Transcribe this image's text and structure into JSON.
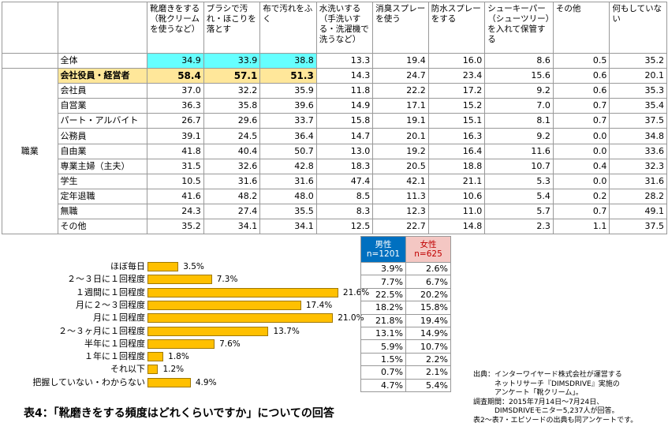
{
  "main_table": {
    "headers": [
      "靴磨きをする（靴クリームを使うなど）",
      "ブラシで汚れ・ほこりを落とす",
      "布で汚れをふく",
      "水洗いする（手洗いする・洗濯機で洗うなど）",
      "消臭スプレーを使う",
      "防水スプレーをする",
      "シューキーパー（シューツリー）を入れて保管する",
      "その他",
      "何もしていない"
    ],
    "total_row": {
      "label": "全体",
      "values": [
        "34.9",
        "33.9",
        "38.8",
        "13.3",
        "19.4",
        "16.0",
        "8.6",
        "0.5",
        "35.2"
      ]
    },
    "group_label": "職業",
    "rows": [
      {
        "label": "会社役員・経営者",
        "values": [
          "58.4",
          "57.1",
          "51.3",
          "14.3",
          "24.7",
          "23.4",
          "15.6",
          "0.6",
          "20.1"
        ]
      },
      {
        "label": "会社員",
        "values": [
          "37.0",
          "32.2",
          "35.9",
          "11.8",
          "22.2",
          "17.2",
          "9.2",
          "0.6",
          "35.3"
        ]
      },
      {
        "label": "自営業",
        "values": [
          "36.3",
          "35.8",
          "39.6",
          "14.9",
          "17.1",
          "15.2",
          "7.0",
          "0.7",
          "35.4"
        ]
      },
      {
        "label": "パート・アルバイト",
        "values": [
          "26.7",
          "29.6",
          "33.7",
          "15.8",
          "19.1",
          "15.1",
          "8.1",
          "0.7",
          "37.5"
        ]
      },
      {
        "label": "公務員",
        "values": [
          "39.1",
          "24.5",
          "36.4",
          "14.7",
          "20.1",
          "16.3",
          "9.2",
          "0.0",
          "34.8"
        ]
      },
      {
        "label": "自由業",
        "values": [
          "41.8",
          "40.4",
          "50.7",
          "13.0",
          "19.2",
          "16.4",
          "11.6",
          "0.0",
          "33.6"
        ]
      },
      {
        "label": "専業主婦（主夫）",
        "values": [
          "31.5",
          "32.6",
          "42.8",
          "18.3",
          "20.5",
          "18.8",
          "10.7",
          "0.4",
          "32.3"
        ]
      },
      {
        "label": "学生",
        "values": [
          "10.5",
          "31.6",
          "31.6",
          "47.4",
          "42.1",
          "21.1",
          "5.3",
          "0.0",
          "31.6"
        ]
      },
      {
        "label": "定年退職",
        "values": [
          "41.6",
          "48.2",
          "48.0",
          "8.5",
          "11.3",
          "10.6",
          "5.4",
          "0.2",
          "28.2"
        ]
      },
      {
        "label": "無職",
        "values": [
          "24.3",
          "27.4",
          "35.5",
          "8.3",
          "12.3",
          "11.0",
          "5.7",
          "0.7",
          "49.1"
        ]
      },
      {
        "label": "その他",
        "values": [
          "35.2",
          "34.1",
          "34.1",
          "12.5",
          "22.7",
          "14.8",
          "2.3",
          "1.1",
          "37.5"
        ]
      }
    ]
  },
  "chart_data": {
    "type": "bar",
    "orientation": "horizontal",
    "categories": [
      "ほぼ毎日",
      "２～３日に１回程度",
      "１週間に１回程度",
      "月に２～３回程度",
      "月に１回程度",
      "２～３ヶ月に１回程度",
      "半年に１回程度",
      "１年に１回程度",
      "それ以下",
      "把握していない・わからない"
    ],
    "values": [
      3.5,
      7.3,
      21.6,
      17.4,
      21.0,
      13.7,
      7.6,
      1.8,
      1.2,
      4.9
    ],
    "value_labels": [
      "3.5%",
      "7.3%",
      "21.6%",
      "17.4%",
      "21.0%",
      "13.7%",
      "7.6%",
      "1.8%",
      "1.2%",
      "4.9%"
    ],
    "bar_color": "#ffc000"
  },
  "gender_table": {
    "male_header": "男性",
    "male_n": "n=1201",
    "female_header": "女性",
    "female_n": "n=625",
    "rows": [
      [
        "3.9%",
        "2.6%"
      ],
      [
        "7.7%",
        "6.7%"
      ],
      [
        "22.5%",
        "20.2%"
      ],
      [
        "18.2%",
        "15.8%"
      ],
      [
        "21.8%",
        "19.4%"
      ],
      [
        "13.1%",
        "14.9%"
      ],
      [
        "5.9%",
        "10.7%"
      ],
      [
        "1.5%",
        "2.2%"
      ],
      [
        "0.7%",
        "2.1%"
      ],
      [
        "4.7%",
        "5.4%"
      ]
    ]
  },
  "caption": "表4：「靴磨きをする頻度はどれくらいですか」についての回答",
  "source_note": "出典：インターワイヤード株式会社が運営する\n　　　ネットリサーチ『DIMSDRIVE』実施の\n　　　アンケート「靴クリーム」。\n調査期間：2015年7月14日～7月24日、\n　　　DIMSDRIVEモニター5,237人が回答。\n表2～表7・エピソードの出典も同アンケートです。",
  "colors": {
    "highlight_cyan": "#66ffff",
    "highlight_orange": "#ffe79a",
    "male_blue": "#0070c0",
    "female_pink": "#f4c7c3"
  }
}
